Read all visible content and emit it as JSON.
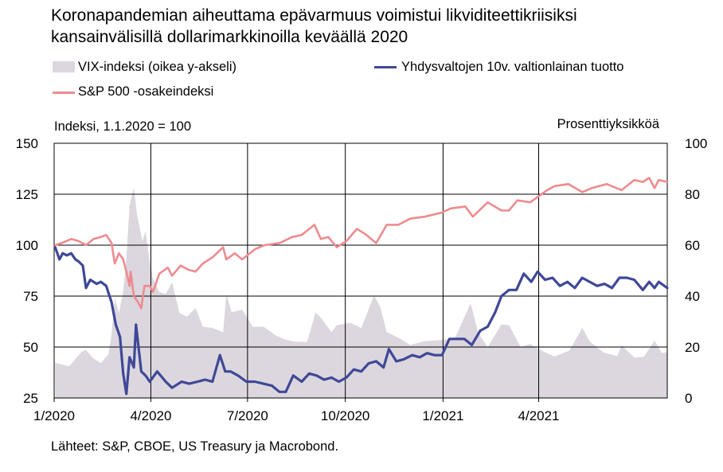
{
  "title_lines": [
    "Koronapandemian aiheuttama epävarmuus voimistui likviditeettikriisiksi",
    "kansainvälisillä dollarimarkkinoilla keväällä 2020"
  ],
  "source": "Lähteet: S&P, CBOE, US Treasury ja Macrobond.",
  "colors": {
    "vix": "#dcd7de",
    "yield": "#3f4897",
    "sp500": "#ee8b8f",
    "grid": "#000000"
  },
  "chart_data": {
    "type": "line",
    "title": "Koronapandemian aiheuttama epävarmuus voimistui likviditeettikriisiksi kansainvälisillä dollarimarkkinoilla keväällä 2020",
    "left_axis_label": "Indeksi, 1.1.2020 = 100",
    "right_axis_label": "Prosenttiyksikköä",
    "left_ylim": [
      25,
      150
    ],
    "left_ticks": [
      25,
      50,
      75,
      100,
      125,
      150
    ],
    "right_ylim": [
      0,
      100
    ],
    "right_ticks": [
      0,
      20,
      40,
      60,
      80,
      100
    ],
    "x_range": [
      "2020-01-01",
      "2021-07-31"
    ],
    "x_ticks": [
      "1/2020",
      "4/2020",
      "7/2020",
      "10/2020",
      "1/2021",
      "4/2021"
    ],
    "x_tick_dates": [
      "2020-01-01",
      "2020-04-01",
      "2020-07-01",
      "2020-10-01",
      "2021-01-01",
      "2021-04-01"
    ],
    "grid": true,
    "legend_position": "top",
    "series": [
      {
        "name": "VIX-indeksi (oikea y-akseli)",
        "key": "vix",
        "axis": "right",
        "style": "area",
        "points": [
          [
            "2020-01-02",
            13.8
          ],
          [
            "2020-01-15",
            12.4
          ],
          [
            "2020-01-27",
            18.2
          ],
          [
            "2020-01-31",
            18.8
          ],
          [
            "2020-02-07",
            15.5
          ],
          [
            "2020-02-14",
            13.7
          ],
          [
            "2020-02-21",
            17.1
          ],
          [
            "2020-02-24",
            25.0
          ],
          [
            "2020-02-27",
            39.2
          ],
          [
            "2020-03-02",
            33.4
          ],
          [
            "2020-03-06",
            41.9
          ],
          [
            "2020-03-09",
            54.5
          ],
          [
            "2020-03-12",
            75.5
          ],
          [
            "2020-03-16",
            82.7
          ],
          [
            "2020-03-19",
            72.0
          ],
          [
            "2020-03-24",
            61.7
          ],
          [
            "2020-03-27",
            65.5
          ],
          [
            "2020-03-31",
            53.5
          ],
          [
            "2020-04-03",
            46.8
          ],
          [
            "2020-04-09",
            41.7
          ],
          [
            "2020-04-15",
            40.8
          ],
          [
            "2020-04-21",
            45.4
          ],
          [
            "2020-04-28",
            33.3
          ],
          [
            "2020-05-05",
            31.9
          ],
          [
            "2020-05-13",
            35.3
          ],
          [
            "2020-05-20",
            28.0
          ],
          [
            "2020-05-29",
            27.5
          ],
          [
            "2020-06-08",
            25.8
          ],
          [
            "2020-06-11",
            40.8
          ],
          [
            "2020-06-16",
            33.7
          ],
          [
            "2020-06-26",
            34.7
          ],
          [
            "2020-07-06",
            27.9
          ],
          [
            "2020-07-16",
            28.0
          ],
          [
            "2020-07-27",
            24.7
          ],
          [
            "2020-08-05",
            23.0
          ],
          [
            "2020-08-14",
            22.1
          ],
          [
            "2020-08-26",
            22.0
          ],
          [
            "2020-09-03",
            33.6
          ],
          [
            "2020-09-08",
            31.5
          ],
          [
            "2020-09-18",
            25.8
          ],
          [
            "2020-09-23",
            28.6
          ],
          [
            "2020-10-06",
            29.5
          ],
          [
            "2020-10-16",
            27.4
          ],
          [
            "2020-10-28",
            40.3
          ],
          [
            "2020-11-03",
            35.6
          ],
          [
            "2020-11-09",
            25.8
          ],
          [
            "2020-11-20",
            23.7
          ],
          [
            "2020-12-01",
            20.8
          ],
          [
            "2020-12-15",
            22.3
          ],
          [
            "2020-12-31",
            22.8
          ],
          [
            "2021-01-12",
            23.3
          ],
          [
            "2021-01-27",
            37.2
          ],
          [
            "2021-02-03",
            25.6
          ],
          [
            "2021-02-12",
            19.9
          ],
          [
            "2021-02-25",
            28.9
          ],
          [
            "2021-03-04",
            28.6
          ],
          [
            "2021-03-15",
            20.0
          ],
          [
            "2021-03-24",
            21.2
          ],
          [
            "2021-04-06",
            18.1
          ],
          [
            "2021-04-16",
            16.3
          ],
          [
            "2021-04-30",
            18.6
          ],
          [
            "2021-05-12",
            27.6
          ],
          [
            "2021-05-19",
            22.2
          ],
          [
            "2021-06-01",
            17.9
          ],
          [
            "2021-06-14",
            16.4
          ],
          [
            "2021-06-18",
            20.7
          ],
          [
            "2021-06-30",
            15.8
          ],
          [
            "2021-07-09",
            16.2
          ],
          [
            "2021-07-19",
            22.5
          ],
          [
            "2021-07-26",
            17.6
          ],
          [
            "2021-07-31",
            18.2
          ]
        ]
      },
      {
        "name": "Yhdysvaltojen 10v. valtionlainan tuotto",
        "key": "yield",
        "axis": "left",
        "style": "line",
        "points": [
          [
            "2020-01-02",
            99
          ],
          [
            "2020-01-06",
            93
          ],
          [
            "2020-01-09",
            96
          ],
          [
            "2020-01-13",
            95
          ],
          [
            "2020-01-17",
            96
          ],
          [
            "2020-01-21",
            93
          ],
          [
            "2020-01-24",
            92
          ],
          [
            "2020-01-28",
            90
          ],
          [
            "2020-01-31",
            79
          ],
          [
            "2020-02-04",
            83
          ],
          [
            "2020-02-10",
            81
          ],
          [
            "2020-02-14",
            82
          ],
          [
            "2020-02-19",
            80
          ],
          [
            "2020-02-24",
            72
          ],
          [
            "2020-02-28",
            61
          ],
          [
            "2020-03-03",
            55
          ],
          [
            "2020-03-06",
            37
          ],
          [
            "2020-03-09",
            27
          ],
          [
            "2020-03-12",
            45
          ],
          [
            "2020-03-16",
            40
          ],
          [
            "2020-03-18",
            61
          ],
          [
            "2020-03-23",
            38
          ],
          [
            "2020-03-27",
            36
          ],
          [
            "2020-03-31",
            33
          ],
          [
            "2020-04-07",
            38
          ],
          [
            "2020-04-15",
            33
          ],
          [
            "2020-04-21",
            30
          ],
          [
            "2020-04-30",
            33
          ],
          [
            "2020-05-07",
            32
          ],
          [
            "2020-05-15",
            33
          ],
          [
            "2020-05-22",
            34
          ],
          [
            "2020-05-29",
            33
          ],
          [
            "2020-06-05",
            46
          ],
          [
            "2020-06-10",
            38
          ],
          [
            "2020-06-15",
            38
          ],
          [
            "2020-06-22",
            36
          ],
          [
            "2020-06-30",
            33
          ],
          [
            "2020-07-08",
            33
          ],
          [
            "2020-07-16",
            32
          ],
          [
            "2020-07-24",
            31
          ],
          [
            "2020-07-31",
            28
          ],
          [
            "2020-08-06",
            28
          ],
          [
            "2020-08-13",
            36
          ],
          [
            "2020-08-21",
            33
          ],
          [
            "2020-08-28",
            37
          ],
          [
            "2020-09-04",
            36
          ],
          [
            "2020-09-11",
            34
          ],
          [
            "2020-09-18",
            35
          ],
          [
            "2020-09-25",
            33
          ],
          [
            "2020-10-02",
            35
          ],
          [
            "2020-10-09",
            39
          ],
          [
            "2020-10-16",
            38
          ],
          [
            "2020-10-23",
            42
          ],
          [
            "2020-10-30",
            43
          ],
          [
            "2020-11-06",
            40
          ],
          [
            "2020-11-11",
            49
          ],
          [
            "2020-11-18",
            43
          ],
          [
            "2020-11-25",
            44
          ],
          [
            "2020-12-03",
            46
          ],
          [
            "2020-12-10",
            45
          ],
          [
            "2020-12-17",
            47
          ],
          [
            "2020-12-24",
            46
          ],
          [
            "2020-12-31",
            46
          ],
          [
            "2021-01-07",
            54
          ],
          [
            "2021-01-14",
            54
          ],
          [
            "2021-01-21",
            54
          ],
          [
            "2021-01-28",
            51
          ],
          [
            "2021-02-05",
            58
          ],
          [
            "2021-02-12",
            60
          ],
          [
            "2021-02-19",
            67
          ],
          [
            "2021-02-25",
            75
          ],
          [
            "2021-03-04",
            78
          ],
          [
            "2021-03-11",
            78
          ],
          [
            "2021-03-18",
            86
          ],
          [
            "2021-03-25",
            82
          ],
          [
            "2021-03-31",
            87
          ],
          [
            "2021-04-07",
            83
          ],
          [
            "2021-04-14",
            84
          ],
          [
            "2021-04-21",
            80
          ],
          [
            "2021-04-28",
            82
          ],
          [
            "2021-05-05",
            79
          ],
          [
            "2021-05-12",
            84
          ],
          [
            "2021-05-19",
            82
          ],
          [
            "2021-05-26",
            80
          ],
          [
            "2021-06-02",
            81
          ],
          [
            "2021-06-09",
            79
          ],
          [
            "2021-06-16",
            84
          ],
          [
            "2021-06-23",
            84
          ],
          [
            "2021-06-30",
            83
          ],
          [
            "2021-07-08",
            78
          ],
          [
            "2021-07-14",
            82
          ],
          [
            "2021-07-19",
            79
          ],
          [
            "2021-07-23",
            82
          ],
          [
            "2021-07-31",
            79
          ]
        ]
      },
      {
        "name": "S&P 500 -osakeindeksi",
        "key": "sp500",
        "axis": "left",
        "style": "line",
        "points": [
          [
            "2020-01-02",
            100
          ],
          [
            "2020-01-08",
            101
          ],
          [
            "2020-01-17",
            103
          ],
          [
            "2020-01-24",
            102
          ],
          [
            "2020-01-31",
            100
          ],
          [
            "2020-02-07",
            103
          ],
          [
            "2020-02-14",
            104
          ],
          [
            "2020-02-19",
            105
          ],
          [
            "2020-02-24",
            101
          ],
          [
            "2020-02-27",
            91
          ],
          [
            "2020-03-02",
            96
          ],
          [
            "2020-03-06",
            93
          ],
          [
            "2020-03-09",
            87
          ],
          [
            "2020-03-12",
            80
          ],
          [
            "2020-03-13",
            87
          ],
          [
            "2020-03-16",
            75
          ],
          [
            "2020-03-20",
            72
          ],
          [
            "2020-03-23",
            69
          ],
          [
            "2020-03-26",
            80
          ],
          [
            "2020-03-31",
            80
          ],
          [
            "2020-04-03",
            77
          ],
          [
            "2020-04-09",
            86
          ],
          [
            "2020-04-17",
            89
          ],
          [
            "2020-04-21",
            85
          ],
          [
            "2020-04-29",
            90
          ],
          [
            "2020-05-06",
            88
          ],
          [
            "2020-05-13",
            87
          ],
          [
            "2020-05-20",
            91
          ],
          [
            "2020-05-29",
            94
          ],
          [
            "2020-06-08",
            99
          ],
          [
            "2020-06-11",
            93
          ],
          [
            "2020-06-19",
            96
          ],
          [
            "2020-06-26",
            93
          ],
          [
            "2020-07-08",
            98
          ],
          [
            "2020-07-17",
            100
          ],
          [
            "2020-07-31",
            101
          ],
          [
            "2020-08-12",
            104
          ],
          [
            "2020-08-21",
            105
          ],
          [
            "2020-09-02",
            110
          ],
          [
            "2020-09-08",
            103
          ],
          [
            "2020-09-15",
            104
          ],
          [
            "2020-09-23",
            99
          ],
          [
            "2020-10-02",
            102
          ],
          [
            "2020-10-12",
            108
          ],
          [
            "2020-10-21",
            105
          ],
          [
            "2020-10-30",
            101
          ],
          [
            "2020-11-09",
            110
          ],
          [
            "2020-11-20",
            110
          ],
          [
            "2020-12-01",
            113
          ],
          [
            "2020-12-15",
            114
          ],
          [
            "2020-12-31",
            116
          ],
          [
            "2021-01-08",
            118
          ],
          [
            "2021-01-22",
            119
          ],
          [
            "2021-01-29",
            114
          ],
          [
            "2021-02-12",
            121
          ],
          [
            "2021-02-25",
            117
          ],
          [
            "2021-03-04",
            117
          ],
          [
            "2021-03-12",
            122
          ],
          [
            "2021-03-24",
            121
          ],
          [
            "2021-04-09",
            127
          ],
          [
            "2021-04-16",
            129
          ],
          [
            "2021-04-29",
            130
          ],
          [
            "2021-05-12",
            126
          ],
          [
            "2021-05-21",
            128
          ],
          [
            "2021-06-04",
            130
          ],
          [
            "2021-06-18",
            127
          ],
          [
            "2021-06-30",
            132
          ],
          [
            "2021-07-08",
            131
          ],
          [
            "2021-07-14",
            133
          ],
          [
            "2021-07-19",
            128
          ],
          [
            "2021-07-23",
            132
          ],
          [
            "2021-07-31",
            131
          ]
        ]
      }
    ]
  }
}
